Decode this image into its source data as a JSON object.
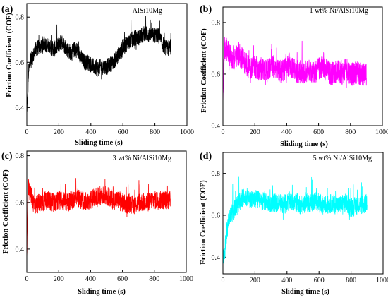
{
  "chart_data": [
    {
      "type": "line",
      "panel_label": "(a)",
      "annotation": "AlSi10Mg",
      "xlabel": "Sliding time (s)",
      "ylabel": "Friction Coefficient (COF)",
      "xlim": [
        0,
        1000
      ],
      "ylim": [
        0.32,
        0.86
      ],
      "xticks": [
        0,
        200,
        400,
        600,
        800,
        1000
      ],
      "yticks": [
        0.4,
        0.6,
        0.8
      ],
      "color": "#000000",
      "x_end": 900,
      "grid": false,
      "series": [
        {
          "x": [
            0,
            5,
            10,
            20,
            40,
            60,
            80,
            100,
            120,
            140,
            160,
            180,
            200,
            220,
            240,
            260,
            280,
            300,
            320,
            340,
            360,
            380,
            400,
            420,
            440,
            460,
            480,
            500,
            520,
            540,
            560,
            580,
            600,
            620,
            640,
            660,
            680,
            700,
            720,
            740,
            760,
            780,
            800,
            820,
            840,
            860,
            880,
            900
          ],
          "y": [
            0.46,
            0.4,
            0.55,
            0.6,
            0.63,
            0.66,
            0.67,
            0.68,
            0.68,
            0.67,
            0.66,
            0.66,
            0.68,
            0.69,
            0.67,
            0.65,
            0.64,
            0.66,
            0.65,
            0.62,
            0.6,
            0.6,
            0.59,
            0.58,
            0.57,
            0.58,
            0.58,
            0.58,
            0.59,
            0.6,
            0.62,
            0.64,
            0.66,
            0.68,
            0.69,
            0.7,
            0.71,
            0.71,
            0.72,
            0.73,
            0.72,
            0.72,
            0.72,
            0.72,
            0.69,
            0.67,
            0.66,
            0.67
          ]
        }
      ]
    },
    {
      "type": "line",
      "panel_label": "(b)",
      "annotation": "1 wt% Ni/AlSi10Mg",
      "xlabel": "Sliding time (s)",
      "ylabel": "Friction Coefficient (COF)",
      "xlim": [
        0,
        1000
      ],
      "ylim": [
        0.4,
        0.86
      ],
      "xticks": [
        0,
        200,
        400,
        600,
        800,
        1000
      ],
      "yticks": [
        0.4,
        0.6,
        0.8
      ],
      "color": "#ff00ff",
      "x_end": 900,
      "grid": false,
      "series": [
        {
          "x": [
            0,
            5,
            10,
            20,
            40,
            60,
            80,
            100,
            120,
            140,
            160,
            180,
            200,
            220,
            240,
            260,
            280,
            300,
            320,
            340,
            360,
            380,
            400,
            420,
            440,
            460,
            480,
            500,
            520,
            540,
            560,
            580,
            600,
            620,
            640,
            660,
            680,
            700,
            720,
            740,
            760,
            780,
            800,
            820,
            840,
            860,
            880,
            900
          ],
          "y": [
            0.5,
            0.62,
            0.68,
            0.7,
            0.68,
            0.66,
            0.66,
            0.68,
            0.66,
            0.64,
            0.63,
            0.62,
            0.63,
            0.62,
            0.62,
            0.61,
            0.62,
            0.62,
            0.63,
            0.62,
            0.61,
            0.61,
            0.63,
            0.64,
            0.62,
            0.61,
            0.61,
            0.6,
            0.61,
            0.62,
            0.61,
            0.61,
            0.62,
            0.63,
            0.62,
            0.61,
            0.6,
            0.61,
            0.61,
            0.6,
            0.61,
            0.62,
            0.6,
            0.6,
            0.61,
            0.6,
            0.6,
            0.6
          ]
        }
      ]
    },
    {
      "type": "line",
      "panel_label": "(c)",
      "annotation": "3 wt%  Ni/AlSi10Mg",
      "xlabel": "Sliding time (s)",
      "ylabel": "Friction Coefficient (COF)",
      "xlim": [
        0,
        1000
      ],
      "ylim": [
        0.3,
        0.82
      ],
      "xticks": [
        0,
        200,
        400,
        600,
        800,
        1000
      ],
      "yticks": [
        0.4,
        0.6,
        0.8
      ],
      "color": "#ff0000",
      "x_end": 900,
      "grid": false,
      "series": [
        {
          "x": [
            0,
            5,
            10,
            20,
            40,
            60,
            80,
            100,
            120,
            140,
            160,
            180,
            200,
            220,
            240,
            260,
            280,
            300,
            320,
            340,
            360,
            380,
            400,
            420,
            440,
            460,
            480,
            500,
            520,
            540,
            560,
            580,
            600,
            620,
            640,
            660,
            680,
            700,
            720,
            740,
            760,
            780,
            800,
            820,
            840,
            860,
            880,
            900
          ],
          "y": [
            0.34,
            0.6,
            0.66,
            0.64,
            0.6,
            0.59,
            0.6,
            0.6,
            0.61,
            0.61,
            0.6,
            0.6,
            0.61,
            0.61,
            0.6,
            0.6,
            0.61,
            0.61,
            0.62,
            0.61,
            0.61,
            0.6,
            0.61,
            0.62,
            0.62,
            0.63,
            0.63,
            0.63,
            0.62,
            0.61,
            0.61,
            0.61,
            0.6,
            0.59,
            0.6,
            0.59,
            0.59,
            0.6,
            0.6,
            0.6,
            0.6,
            0.61,
            0.61,
            0.61,
            0.61,
            0.61,
            0.61,
            0.61
          ]
        }
      ]
    },
    {
      "type": "line",
      "panel_label": "(d)",
      "annotation": "5 wt%  Ni/AlSi10Mg",
      "xlabel": "Sliding time (s)",
      "ylabel": "Friction Coefficient (COF)",
      "xlim": [
        0,
        1000
      ],
      "ylim": [
        0.32,
        0.9
      ],
      "xticks": [
        0,
        200,
        400,
        600,
        800,
        1000
      ],
      "yticks": [
        0.4,
        0.6,
        0.8
      ],
      "color": "#00ffff",
      "x_end": 900,
      "grid": false,
      "series": [
        {
          "x": [
            0,
            5,
            10,
            20,
            40,
            60,
            80,
            100,
            120,
            140,
            160,
            180,
            200,
            220,
            240,
            260,
            280,
            300,
            320,
            340,
            360,
            380,
            400,
            420,
            440,
            460,
            480,
            500,
            520,
            540,
            560,
            580,
            600,
            620,
            640,
            660,
            680,
            700,
            720,
            740,
            760,
            780,
            800,
            820,
            840,
            860,
            880,
            900
          ],
          "y": [
            0.42,
            0.38,
            0.42,
            0.5,
            0.6,
            0.62,
            0.64,
            0.66,
            0.68,
            0.69,
            0.68,
            0.67,
            0.68,
            0.67,
            0.66,
            0.67,
            0.66,
            0.66,
            0.66,
            0.66,
            0.66,
            0.65,
            0.66,
            0.67,
            0.66,
            0.66,
            0.65,
            0.65,
            0.66,
            0.66,
            0.66,
            0.67,
            0.66,
            0.65,
            0.65,
            0.65,
            0.66,
            0.65,
            0.65,
            0.65,
            0.66,
            0.65,
            0.64,
            0.64,
            0.65,
            0.65,
            0.65,
            0.66
          ]
        }
      ]
    }
  ]
}
